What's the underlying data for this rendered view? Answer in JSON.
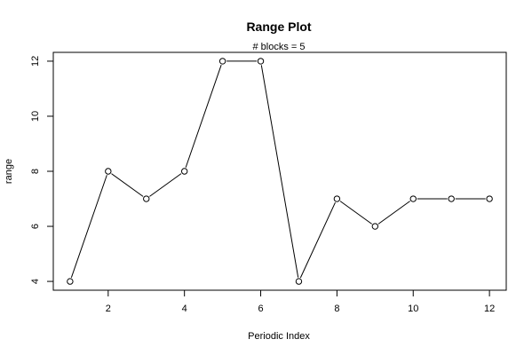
{
  "chart_data": {
    "type": "line",
    "title": "Range Plot",
    "subtitle": "# blocks =  5",
    "xlabel": "Periodic Index",
    "ylabel": "range",
    "x": [
      1,
      2,
      3,
      4,
      5,
      6,
      7,
      8,
      9,
      10,
      11,
      12
    ],
    "y": [
      4,
      8,
      7,
      8,
      12,
      12,
      4,
      7,
      6,
      7,
      7,
      7
    ],
    "xlim": [
      0.56,
      12.44
    ],
    "ylim": [
      3.68,
      12.32
    ],
    "xticks": [
      2,
      4,
      6,
      8,
      10,
      12
    ],
    "yticks": [
      4,
      6,
      8,
      10,
      12
    ],
    "marker": "open-circle",
    "line_style": "connected",
    "grid": false
  }
}
